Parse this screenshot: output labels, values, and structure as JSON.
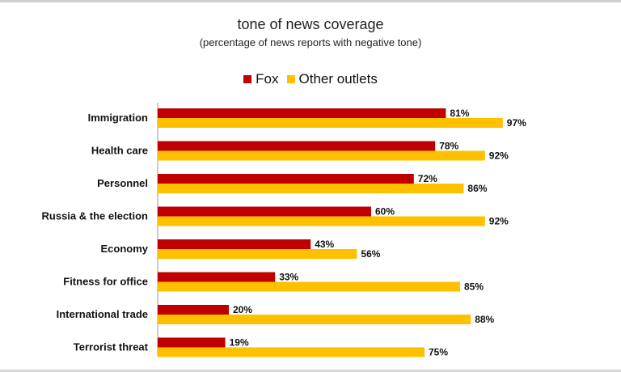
{
  "colors": {
    "fox": "#c00000",
    "other": "#ffc000",
    "axis": "#999999"
  },
  "chart_data": {
    "type": "bar",
    "orientation": "horizontal",
    "title": "tone of news coverage",
    "subtitle": "(percentage of news reports with negative tone)",
    "categories": [
      "Immigration",
      "Health care",
      "Personnel",
      "Russia & the election",
      "Economy",
      "Fitness for office",
      "International trade",
      "Terrorist threat"
    ],
    "series": [
      {
        "name": "Fox",
        "values": [
          81,
          78,
          72,
          60,
          43,
          33,
          20,
          19
        ],
        "labels": [
          "81%",
          "78%",
          "72%",
          "60%",
          "43%",
          "33%",
          "20%",
          "19%"
        ]
      },
      {
        "name": "Other outlets",
        "values": [
          97,
          92,
          86,
          92,
          56,
          85,
          88,
          75
        ],
        "labels": [
          "97%",
          "92%",
          "86%",
          "92%",
          "56%",
          "85%",
          "88%",
          "75%"
        ]
      }
    ],
    "xlim": [
      0,
      100
    ],
    "legend_position": "top-center",
    "grid": false
  }
}
